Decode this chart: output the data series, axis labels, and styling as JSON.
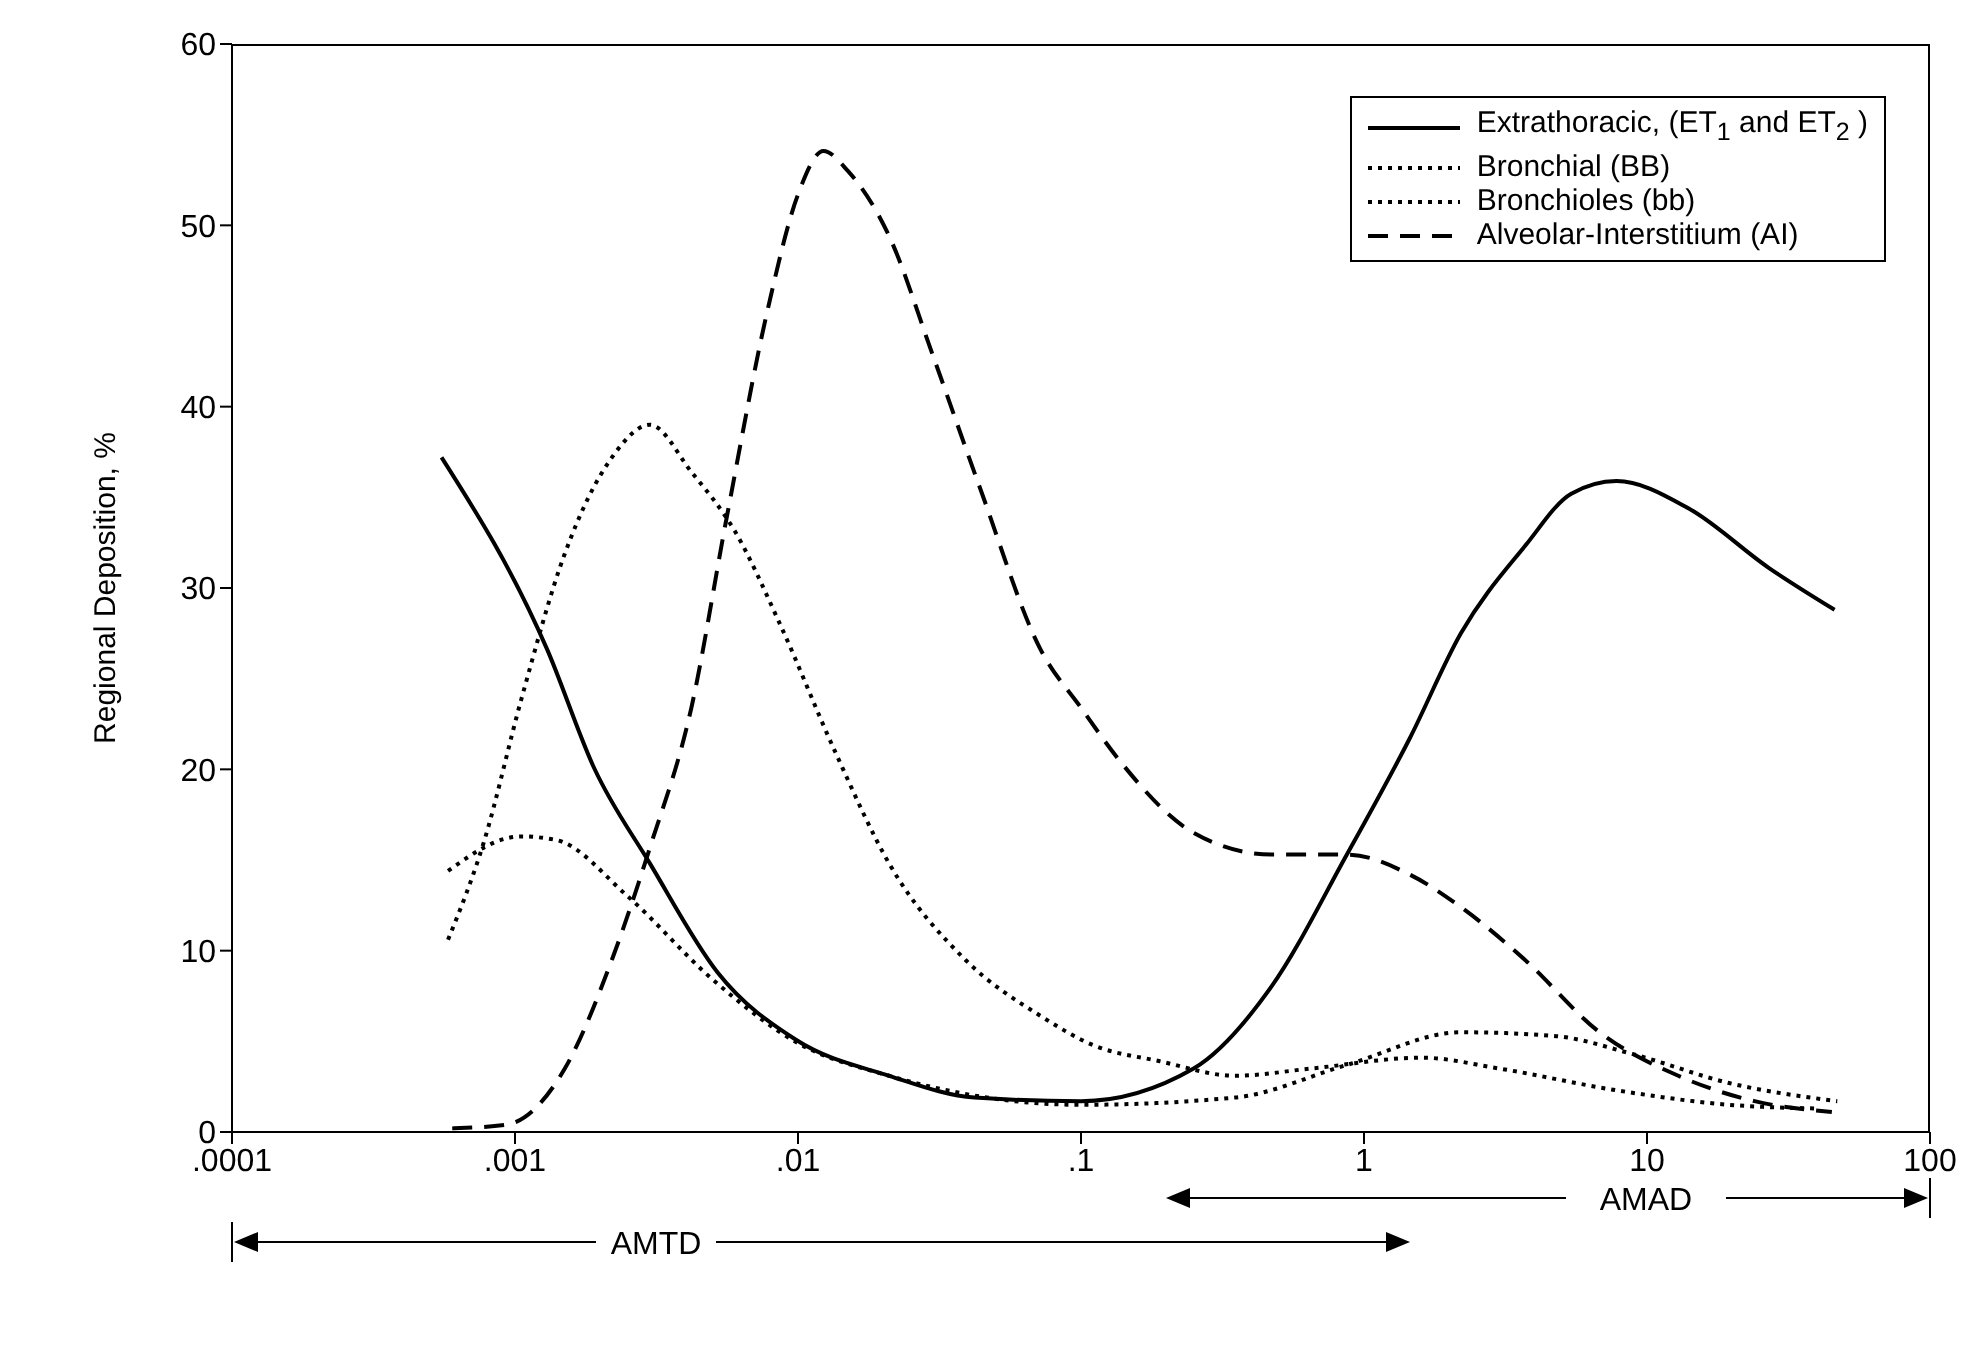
{
  "chart_data": {
    "type": "line",
    "ylabel": "Regional Deposition, %",
    "log": "x",
    "xlim": [
      0.0001,
      100
    ],
    "ylim": [
      0,
      60
    ],
    "xticks": [
      {
        "value": 0.0001,
        "label": ".0001"
      },
      {
        "value": 0.001,
        "label": ".001"
      },
      {
        "value": 0.01,
        "label": ".01"
      },
      {
        "value": 0.1,
        "label": ".1"
      },
      1,
      10,
      100
    ],
    "yticks": [
      0,
      10,
      20,
      30,
      40,
      50,
      60
    ],
    "grid": false,
    "legend": "top right",
    "marker": "none",
    "annotations": [
      "AMTD",
      "AMAD"
    ],
    "series": [
      {
        "name": "Extrathoracic, (ET$_{1}$ and ET$_{2}$ )",
        "color": "#000000",
        "line_style": "solid",
        "x": [
          0.00055,
          0.0013,
          0.0019,
          0.003,
          0.0052,
          0.0098,
          0.021,
          0.042,
          0.1,
          0.25,
          0.47,
          0.87,
          1.45,
          2.2,
          3.7,
          5.4,
          7.8,
          14,
          27,
          46
        ],
        "values": [
          37.2,
          26.6,
          20.1,
          14.8,
          8.8,
          5.1,
          3.1,
          1.9,
          1.7,
          3.5,
          8,
          15.3,
          21.7,
          27.5,
          32.3,
          35.2,
          35.9,
          34.4,
          31.1,
          28.8
        ]
      },
      {
        "name": "Bronchial (BB)",
        "color": "#000000",
        "line_style": "dotted",
        "x": [
          0.00058,
          0.00105,
          0.0014,
          0.0025,
          0.005,
          0.01,
          0.021,
          0.1,
          0.35,
          0.87,
          2.2,
          4.7,
          8.9,
          19.5,
          47
        ],
        "values": [
          14.4,
          16.3,
          16.1,
          13,
          8.4,
          4.9,
          3.1,
          1.5,
          1.9,
          3.7,
          5.5,
          5.3,
          4.3,
          2.7,
          1.7
        ]
      },
      {
        "name": "Bronchioles (bb)",
        "color": "#000000",
        "line_style": "dotted",
        "x": [
          0.00058,
          0.00078,
          0.00105,
          0.0015,
          0.0022,
          0.003,
          0.0042,
          0.006,
          0.0087,
          0.0135,
          0.021,
          0.039,
          0.072,
          0.11,
          0.19,
          0.35,
          0.65,
          1.6,
          3,
          7.8,
          19.5,
          39
        ],
        "values": [
          10.6,
          16.1,
          23.8,
          31.9,
          37.2,
          39,
          36.4,
          33.1,
          27.9,
          21,
          14.8,
          9.5,
          6.4,
          4.8,
          3.9,
          3.1,
          3.5,
          4.1,
          3.5,
          2.3,
          1.5,
          1.3
        ]
      },
      {
        "name": "Alveolar-Interstitium (AI)",
        "color": "#000000",
        "line_style": "dashed",
        "x": [
          0.0006,
          0.00093,
          0.0015,
          0.0022,
          0.003,
          0.0042,
          0.0056,
          0.0078,
          0.01,
          0.0123,
          0.015,
          0.021,
          0.03,
          0.044,
          0.072,
          0.1,
          0.135,
          0.25,
          0.47,
          0.87,
          1.45,
          2.2,
          3.7,
          6.8,
          12.9,
          24,
          45
        ],
        "values": [
          0.2,
          0.4,
          3.5,
          9.5,
          15.7,
          23.4,
          33.9,
          45.3,
          51.7,
          54.1,
          53,
          49.4,
          42.8,
          35.5,
          26.6,
          23.4,
          20.6,
          16.5,
          15.3,
          15.3,
          14.2,
          12.4,
          9.5,
          5.5,
          3.1,
          1.7,
          1.1
        ]
      }
    ]
  }
}
